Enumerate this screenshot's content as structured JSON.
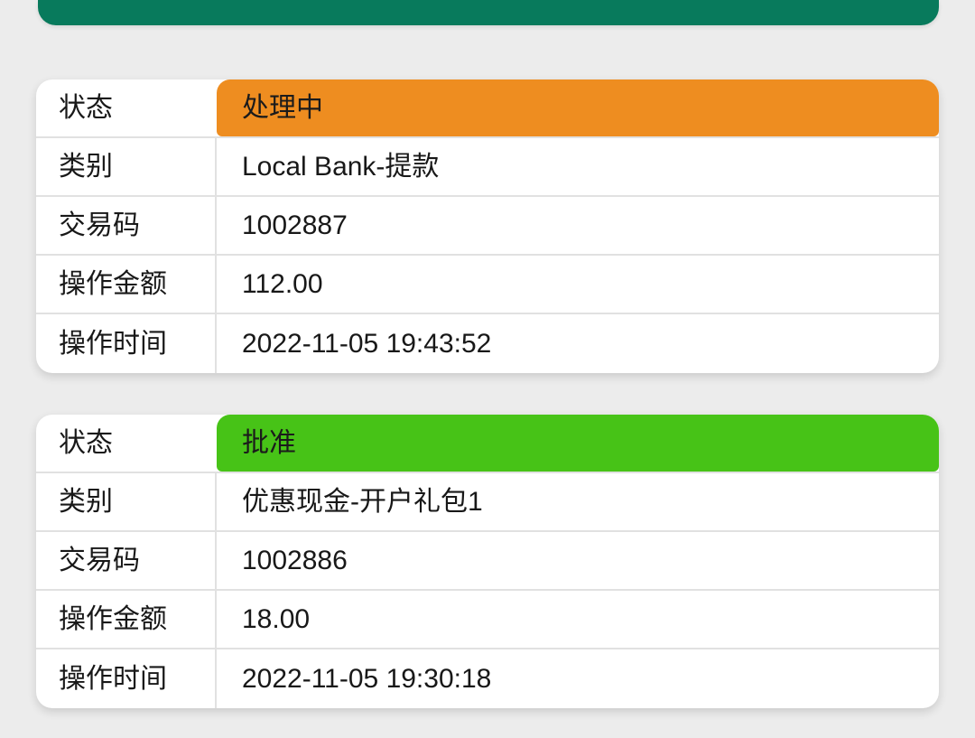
{
  "page": {
    "background_color": "#ececec",
    "top_bar_color": "#087a5c",
    "separator_color": "#e1e1e1",
    "card_color": "#ffffff"
  },
  "labels": {
    "status": "状态",
    "category": "类别",
    "transaction_code": "交易码",
    "amount": "操作金额",
    "time": "操作时间"
  },
  "transactions": [
    {
      "status": "处理中",
      "status_color": "#ee8d20",
      "category": "Local Bank-提款",
      "transaction_code": "1002887",
      "amount": "112.00",
      "time": "2022-11-05 19:43:52"
    },
    {
      "status": "批准",
      "status_color": "#47c317",
      "category": "优惠现金-开户礼包1",
      "transaction_code": "1002886",
      "amount": "18.00",
      "time": "2022-11-05 19:30:18"
    }
  ]
}
